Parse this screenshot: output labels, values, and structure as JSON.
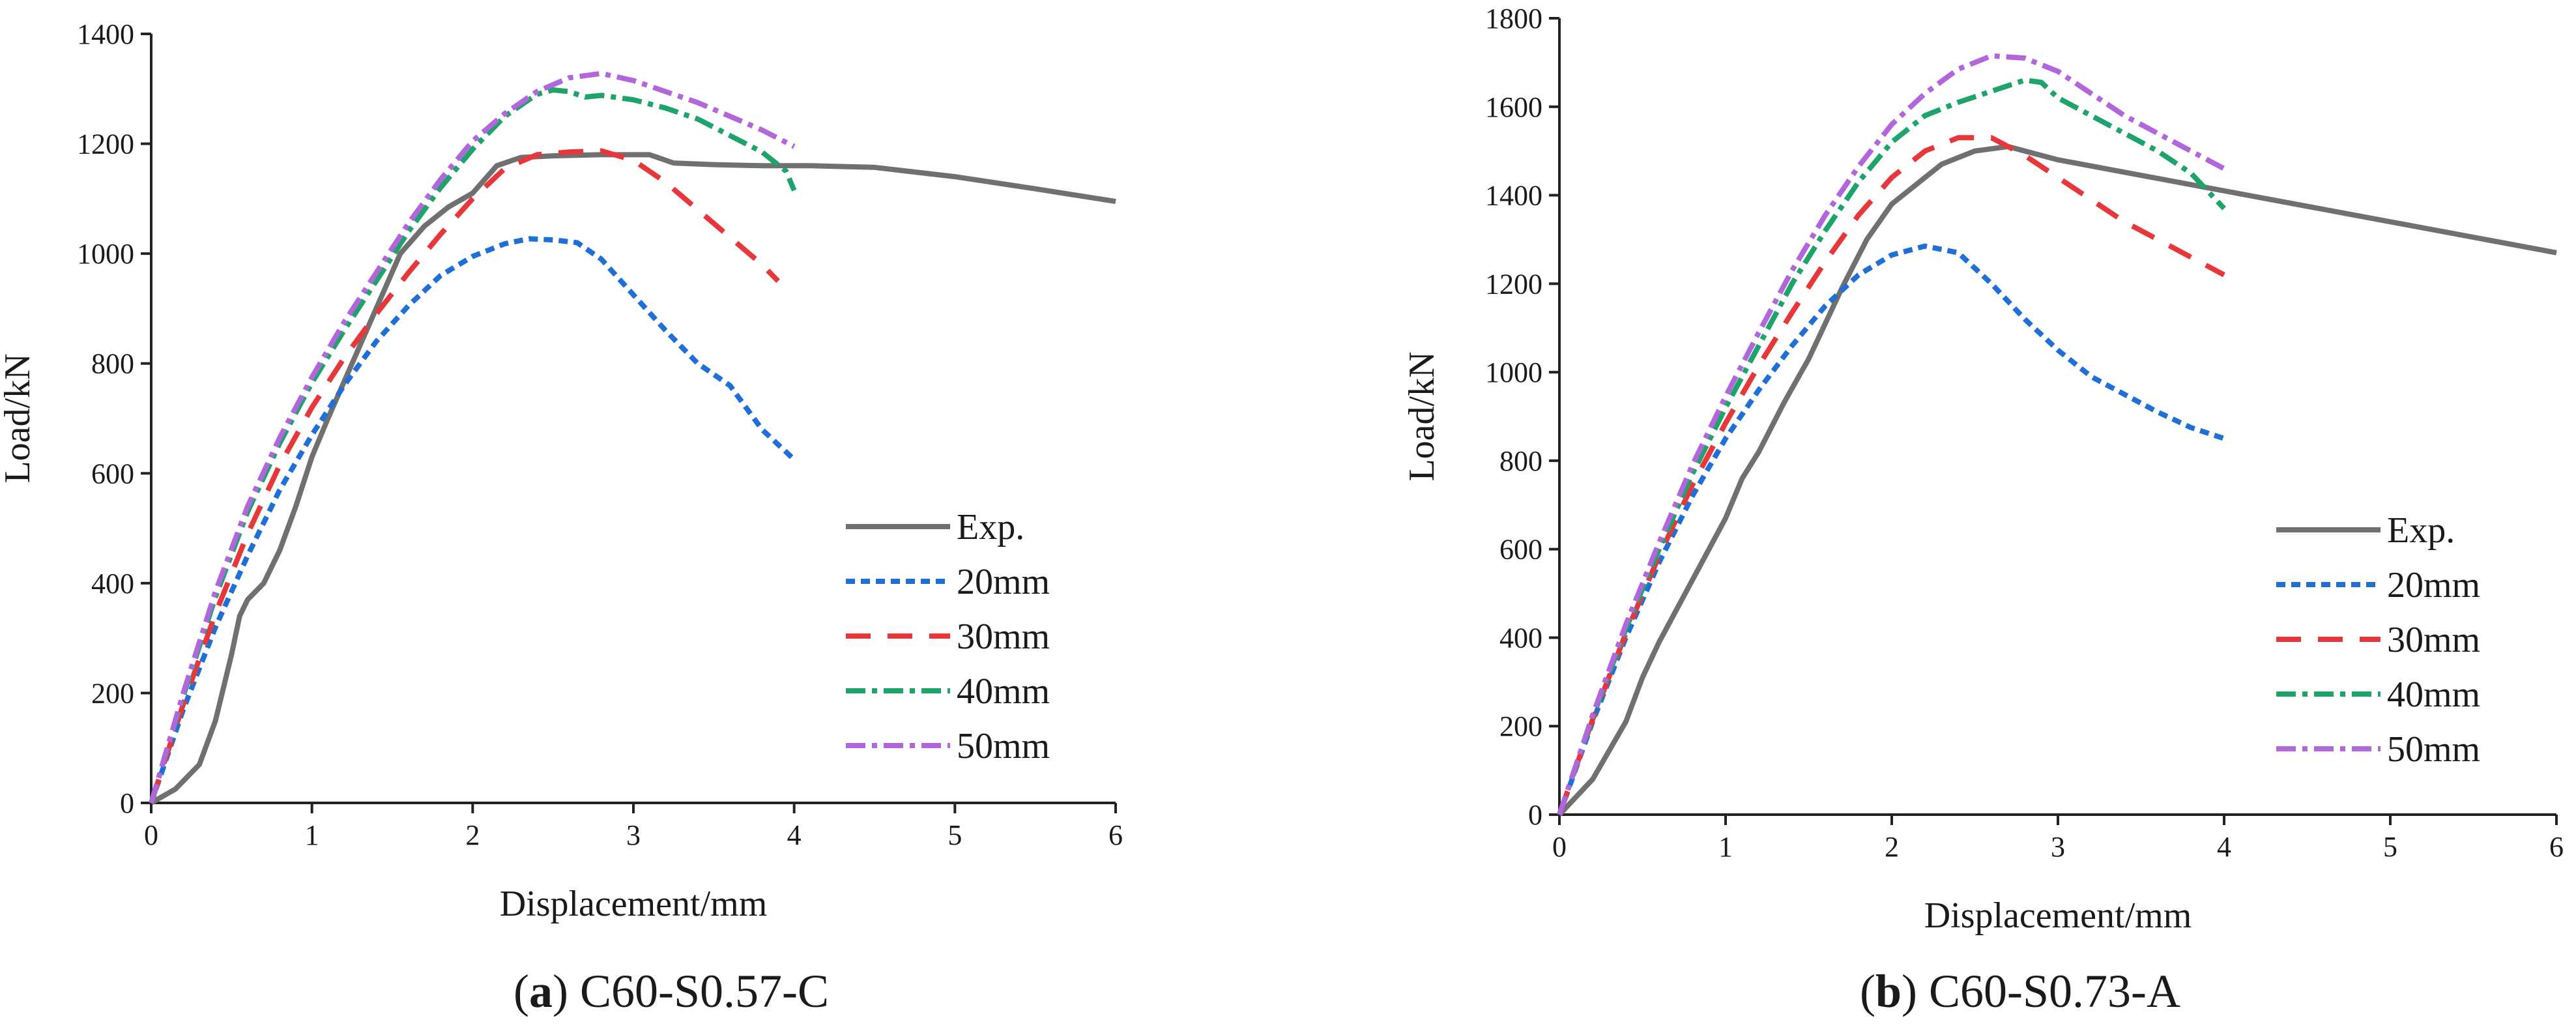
{
  "chart_data": [
    {
      "type": "line",
      "panel_label": "a",
      "caption": "C60-S0.57-C",
      "xlabel": "Displacement/mm",
      "ylabel": "Load/kN",
      "xlim": [
        0,
        6
      ],
      "ylim": [
        0,
        1400
      ],
      "xticks": [
        0,
        1,
        2,
        3,
        4,
        5,
        6
      ],
      "yticks": [
        0,
        200,
        400,
        600,
        800,
        1000,
        1200,
        1400
      ],
      "grid": false,
      "legend_position": "lower-right",
      "series": [
        {
          "name": "Exp.",
          "color": "#707070",
          "style": "solid",
          "x": [
            0,
            0.15,
            0.3,
            0.4,
            0.5,
            0.55,
            0.6,
            0.7,
            0.8,
            0.9,
            1.0,
            1.1,
            1.25,
            1.4,
            1.55,
            1.7,
            1.85,
            2.0,
            2.15,
            2.3,
            2.5,
            2.8,
            3.1,
            3.25,
            3.5,
            3.8,
            4.1,
            4.5,
            5.0,
            5.5,
            6.0
          ],
          "y": [
            0,
            25,
            70,
            150,
            270,
            340,
            370,
            400,
            460,
            540,
            630,
            700,
            800,
            900,
            1000,
            1050,
            1085,
            1110,
            1160,
            1175,
            1178,
            1180,
            1180,
            1165,
            1162,
            1160,
            1160,
            1157,
            1140,
            1118,
            1095
          ]
        },
        {
          "name": "20mm",
          "color": "#1f6fd6",
          "style": "dotted",
          "x": [
            0,
            0.2,
            0.4,
            0.6,
            0.8,
            1.0,
            1.2,
            1.4,
            1.6,
            1.8,
            2.0,
            2.2,
            2.35,
            2.5,
            2.65,
            2.8,
            3.0,
            3.2,
            3.4,
            3.6,
            3.8,
            4.0
          ],
          "y": [
            0,
            170,
            320,
            450,
            570,
            670,
            760,
            840,
            905,
            960,
            995,
            1018,
            1027,
            1025,
            1020,
            990,
            925,
            860,
            800,
            760,
            680,
            625
          ]
        },
        {
          "name": "30mm",
          "color": "#e8373a",
          "style": "dashed",
          "x": [
            0,
            0.2,
            0.4,
            0.6,
            0.8,
            1.0,
            1.2,
            1.4,
            1.6,
            1.8,
            2.0,
            2.2,
            2.4,
            2.6,
            2.8,
            3.0,
            3.2,
            3.4,
            3.6,
            3.8,
            3.9
          ],
          "y": [
            0,
            180,
            345,
            490,
            615,
            720,
            810,
            890,
            965,
            1035,
            1100,
            1155,
            1180,
            1185,
            1187,
            1170,
            1130,
            1080,
            1030,
            980,
            950
          ]
        },
        {
          "name": "40mm",
          "color": "#1ea36a",
          "style": "dash-dot",
          "x": [
            0,
            0.2,
            0.4,
            0.6,
            0.8,
            1.0,
            1.2,
            1.4,
            1.6,
            1.8,
            2.0,
            2.2,
            2.4,
            2.5,
            2.6,
            2.7,
            2.8,
            3.0,
            3.2,
            3.4,
            3.6,
            3.8,
            3.95,
            4.0
          ],
          "y": [
            0,
            195,
            375,
            530,
            655,
            765,
            860,
            950,
            1040,
            1120,
            1190,
            1250,
            1290,
            1298,
            1295,
            1285,
            1288,
            1280,
            1265,
            1245,
            1215,
            1185,
            1150,
            1115
          ]
        },
        {
          "name": "50mm",
          "color": "#b266dc",
          "style": "dash-dot",
          "x": [
            0,
            0.2,
            0.4,
            0.6,
            0.8,
            1.0,
            1.2,
            1.4,
            1.6,
            1.8,
            2.0,
            2.2,
            2.4,
            2.6,
            2.8,
            3.0,
            3.2,
            3.4,
            3.6,
            3.8,
            4.0
          ],
          "y": [
            0,
            200,
            385,
            540,
            665,
            775,
            875,
            965,
            1055,
            1135,
            1205,
            1255,
            1295,
            1320,
            1328,
            1315,
            1295,
            1275,
            1250,
            1225,
            1195
          ]
        }
      ]
    },
    {
      "type": "line",
      "panel_label": "b",
      "caption": "C60-S0.73-A",
      "xlabel": "Displacement/mm",
      "ylabel": "Load/kN",
      "xlim": [
        0,
        6
      ],
      "ylim": [
        0,
        1800
      ],
      "xticks": [
        0,
        1,
        2,
        3,
        4,
        5,
        6
      ],
      "yticks": [
        0,
        200,
        400,
        600,
        800,
        1000,
        1200,
        1400,
        1600,
        1800
      ],
      "grid": false,
      "legend_position": "lower-right",
      "series": [
        {
          "name": "Exp.",
          "color": "#707070",
          "style": "solid",
          "x": [
            0,
            0.2,
            0.4,
            0.5,
            0.6,
            0.7,
            0.8,
            0.9,
            1.0,
            1.1,
            1.2,
            1.35,
            1.5,
            1.7,
            1.85,
            2.0,
            2.2,
            2.3,
            2.5,
            2.7,
            3.0,
            4.0,
            5.0,
            6.0
          ],
          "y": [
            0,
            80,
            210,
            310,
            390,
            460,
            530,
            600,
            670,
            760,
            820,
            930,
            1030,
            1190,
            1300,
            1380,
            1440,
            1470,
            1500,
            1510,
            1480,
            1410,
            1340,
            1270
          ]
        },
        {
          "name": "20mm",
          "color": "#1f6fd6",
          "style": "dotted",
          "x": [
            0,
            0.2,
            0.4,
            0.6,
            0.8,
            1.0,
            1.2,
            1.4,
            1.6,
            1.8,
            2.0,
            2.2,
            2.4,
            2.6,
            2.8,
            3.0,
            3.2,
            3.4,
            3.6,
            3.8,
            4.0
          ],
          "y": [
            0,
            210,
            400,
            570,
            720,
            850,
            960,
            1060,
            1150,
            1220,
            1265,
            1285,
            1270,
            1200,
            1120,
            1050,
            990,
            950,
            910,
            875,
            850
          ]
        },
        {
          "name": "30mm",
          "color": "#e8373a",
          "style": "dashed",
          "x": [
            0,
            0.2,
            0.4,
            0.6,
            0.8,
            1.0,
            1.2,
            1.4,
            1.6,
            1.8,
            2.0,
            2.2,
            2.4,
            2.6,
            2.8,
            3.0,
            3.2,
            3.4,
            3.6,
            3.8,
            4.0
          ],
          "y": [
            0,
            215,
            410,
            585,
            745,
            885,
            1015,
            1135,
            1250,
            1355,
            1440,
            1500,
            1530,
            1530,
            1490,
            1440,
            1390,
            1340,
            1300,
            1260,
            1220
          ]
        },
        {
          "name": "40mm",
          "color": "#1ea36a",
          "style": "dash-dot",
          "x": [
            0,
            0.2,
            0.4,
            0.6,
            0.8,
            1.0,
            1.2,
            1.4,
            1.6,
            1.8,
            2.0,
            2.2,
            2.4,
            2.6,
            2.8,
            2.9,
            3.0,
            3.2,
            3.4,
            3.6,
            3.8,
            4.0
          ],
          "y": [
            0,
            220,
            420,
            600,
            770,
            920,
            1060,
            1200,
            1320,
            1430,
            1520,
            1580,
            1610,
            1635,
            1660,
            1655,
            1620,
            1580,
            1540,
            1500,
            1450,
            1370
          ]
        },
        {
          "name": "50mm",
          "color": "#b266dc",
          "style": "dash-dot",
          "x": [
            0,
            0.2,
            0.4,
            0.6,
            0.8,
            1.0,
            1.2,
            1.4,
            1.6,
            1.8,
            2.0,
            2.2,
            2.4,
            2.6,
            2.8,
            3.0,
            3.2,
            3.4,
            3.6,
            3.8,
            4.0
          ],
          "y": [
            0,
            225,
            430,
            615,
            790,
            945,
            1090,
            1230,
            1355,
            1465,
            1560,
            1630,
            1685,
            1715,
            1710,
            1680,
            1630,
            1580,
            1540,
            1500,
            1460
          ]
        }
      ]
    }
  ]
}
